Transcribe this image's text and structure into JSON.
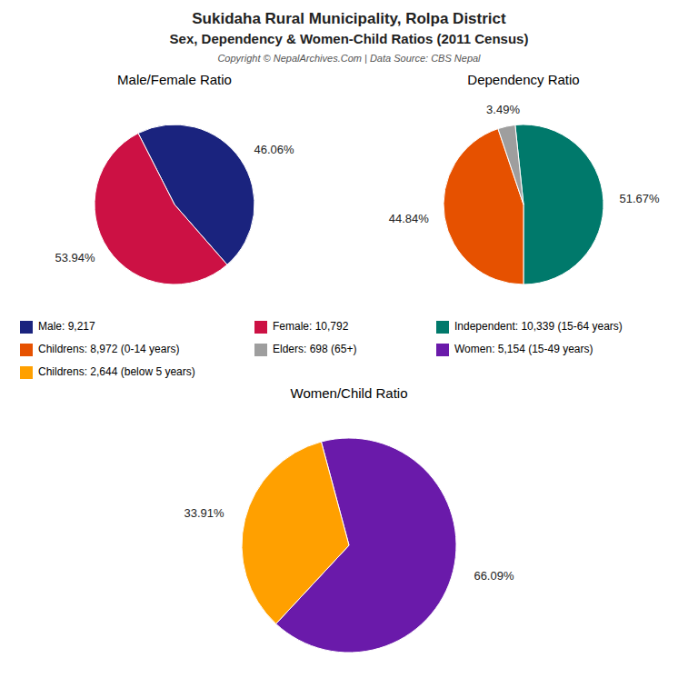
{
  "title": "Sukidaha Rural Municipality, Rolpa District",
  "subtitle": "Sex, Dependency & Women-Child Ratios (2011 Census)",
  "annotations": [
    "Copyright © NepalArchives.Com | Data Source: CBS Nepal"
  ],
  "chart_data": [
    {
      "type": "pie",
      "title": "Male/Female Ratio",
      "categories": [
        "Male: 9,217",
        "Female: 10,792"
      ],
      "values": [
        46.06,
        53.94
      ],
      "value_labels": [
        "46.06%",
        "53.94%"
      ],
      "colors": [
        "#1a237e",
        "#cc1144"
      ],
      "data_labels": true
    },
    {
      "type": "pie",
      "title": "Dependency Ratio",
      "categories": [
        "Independent: 10,339 (15-64 years)",
        "Childrens: 8,972 (0-14 years)",
        "Elders: 698 (65+)"
      ],
      "values": [
        51.67,
        44.84,
        3.49
      ],
      "value_labels": [
        "51.67%",
        "44.84%",
        "3.49%"
      ],
      "colors": [
        "#00796b",
        "#e65100",
        "#9e9e9e"
      ],
      "data_labels": true
    },
    {
      "type": "pie",
      "title": "Women/Child Ratio",
      "categories": [
        "Women: 5,154 (15-49 years)",
        "Childrens: 2,644 (below 5 years)"
      ],
      "values": [
        66.09,
        33.91
      ],
      "value_labels": [
        "66.09%",
        "33.91%"
      ],
      "colors": [
        "#6a1aaa",
        "#ffa000"
      ],
      "data_labels": true
    }
  ]
}
